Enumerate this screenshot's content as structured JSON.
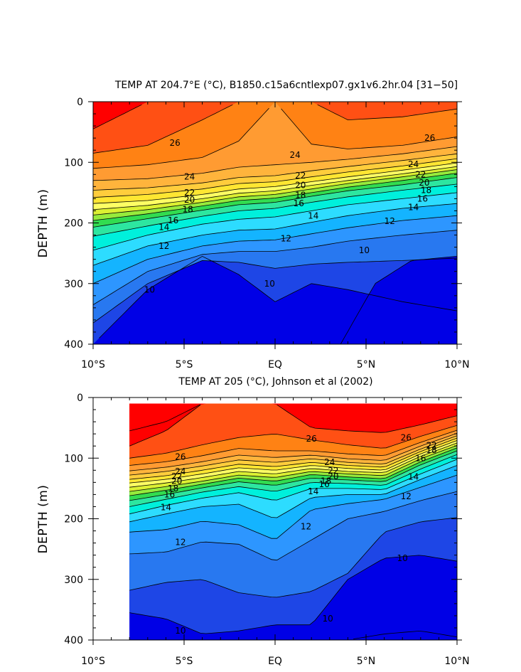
{
  "figure": {
    "background": "#ffffff"
  },
  "colors": {
    "levels": [
      "#0000e6",
      "#1e46e6",
      "#2878f0",
      "#2d96ff",
      "#14b4ff",
      "#2ddcff",
      "#00f0dc",
      "#2de6a0",
      "#32dc50",
      "#96eb3c",
      "#dcf032",
      "#ffff64",
      "#ffe632",
      "#ffcd3c",
      "#ffb43c",
      "#ff9b32",
      "#ff8214",
      "#ff5014",
      "#ff0000"
    ]
  },
  "chart_data": [
    {
      "type": "contour",
      "title": "TEMP AT 204.7°E (°C), B1850.c15a6cntlexp07.gx1v6.2hr.04 [31−50]",
      "ylabel": "DEPTH (m)",
      "xlabel": "",
      "xlim": [
        -10,
        10
      ],
      "ylim": [
        400,
        0
      ],
      "xticks": [
        {
          "value": -10,
          "label": "10°S"
        },
        {
          "value": -5,
          "label": "5°S"
        },
        {
          "value": 0,
          "label": "EQ"
        },
        {
          "value": 5,
          "label": "5°N"
        },
        {
          "value": 10,
          "label": "10°N"
        }
      ],
      "yticks": [
        {
          "value": 0,
          "label": "0"
        },
        {
          "value": 100,
          "label": "100"
        },
        {
          "value": 200,
          "label": "200"
        },
        {
          "value": 300,
          "label": "300"
        },
        {
          "value": 400,
          "label": "400"
        }
      ],
      "contour_interval": 1,
      "x_start": -10,
      "isotherm_depths": {
        "x": [
          -10,
          -7,
          -4,
          -2,
          0,
          2,
          4,
          7,
          10
        ],
        "levels": [
          {
            "t": 10,
            "depth": [
              400,
              310,
              255,
              285,
              330,
              300,
              310,
              330,
              345
            ]
          },
          {
            "t": 11,
            "depth": [
              365,
              300,
              262,
              265,
              275,
              268,
              265,
              262,
              258
            ]
          },
          {
            "t": 12,
            "depth": [
              335,
              280,
              252,
              247,
              247,
              240,
              230,
              220,
              212
            ]
          },
          {
            "t": 13,
            "depth": [
              300,
              260,
              238,
              230,
              228,
              218,
              208,
              196,
              188
            ]
          },
          {
            "t": 14,
            "depth": [
              270,
              238,
              220,
              212,
              210,
              199,
              188,
              176,
              168
            ]
          },
          {
            "t": 15,
            "depth": [
              245,
              220,
              202,
              194,
              190,
              180,
              170,
              160,
              150
            ]
          },
          {
            "t": 16,
            "depth": [
              222,
              205,
              189,
              180,
              176,
              166,
              157,
              146,
              136
            ]
          },
          {
            "t": 17,
            "depth": [
              207,
              193,
              179,
              170,
              166,
              156,
              147,
              137,
              125
            ]
          },
          {
            "t": 18,
            "depth": [
              196,
              185,
              172,
              163,
              159,
              150,
              141,
              130,
              118
            ]
          },
          {
            "t": 19,
            "depth": [
              187,
              178,
              166,
              157,
              153,
              144,
              135,
              124,
              112
            ]
          },
          {
            "t": 20,
            "depth": [
              178,
              171,
              160,
              151,
              147,
              138,
              130,
              119,
              107
            ]
          },
          {
            "t": 21,
            "depth": [
              168,
              163,
              153,
              144,
              140,
              132,
              124,
              113,
              101
            ]
          },
          {
            "t": 22,
            "depth": [
              158,
              153,
              144,
              135,
              132,
              124,
              116,
              106,
              94
            ]
          },
          {
            "t": 23,
            "depth": [
              146,
              142,
              134,
              125,
              122,
              114,
              107,
              97,
              86
            ]
          },
          {
            "t": 24,
            "depth": [
              130,
              127,
              118,
              108,
              104,
              100,
              95,
              86,
              74
            ]
          },
          {
            "t": 25,
            "depth": [
              110,
              104,
              92,
              65,
              0,
              70,
              78,
              72,
              58
            ]
          },
          {
            "t": 26,
            "depth": [
              85,
              72,
              30,
              0,
              0,
              0,
              30,
              25,
              12
            ]
          },
          {
            "t": 27,
            "depth": [
              45,
              0,
              0,
              0,
              0,
              0,
              0,
              0,
              0
            ]
          }
        ]
      },
      "deep_cold_patch": {
        "t": 9,
        "x": [
          3.6,
          5.5,
          7.5,
          10
        ],
        "top_depth": [
          400,
          300,
          262,
          255
        ]
      },
      "contour_labels": [
        {
          "text": "26",
          "x": -5.5,
          "depth": 68
        },
        {
          "text": "24",
          "x": 1.1,
          "depth": 88
        },
        {
          "text": "26",
          "x": 8.5,
          "depth": 60
        },
        {
          "text": "24",
          "x": -4.7,
          "depth": 124
        },
        {
          "text": "24",
          "x": 7.6,
          "depth": 103
        },
        {
          "text": "22",
          "x": -4.7,
          "depth": 150
        },
        {
          "text": "22",
          "x": 1.4,
          "depth": 122
        },
        {
          "text": "22",
          "x": 8.0,
          "depth": 120
        },
        {
          "text": "20",
          "x": -4.7,
          "depth": 162
        },
        {
          "text": "20",
          "x": 1.4,
          "depth": 138
        },
        {
          "text": "20",
          "x": 8.2,
          "depth": 134
        },
        {
          "text": "18",
          "x": -4.8,
          "depth": 178
        },
        {
          "text": "18",
          "x": 1.4,
          "depth": 154
        },
        {
          "text": "18",
          "x": 8.3,
          "depth": 146
        },
        {
          "text": "16",
          "x": -5.6,
          "depth": 196
        },
        {
          "text": "16",
          "x": 1.3,
          "depth": 168
        },
        {
          "text": "16",
          "x": 8.1,
          "depth": 160
        },
        {
          "text": "14",
          "x": -6.1,
          "depth": 207
        },
        {
          "text": "14",
          "x": 2.1,
          "depth": 188
        },
        {
          "text": "14",
          "x": 7.6,
          "depth": 174
        },
        {
          "text": "12",
          "x": -6.1,
          "depth": 238
        },
        {
          "text": "12",
          "x": 0.6,
          "depth": 226
        },
        {
          "text": "12",
          "x": 6.3,
          "depth": 197
        },
        {
          "text": "10",
          "x": -6.9,
          "depth": 310
        },
        {
          "text": "10",
          "x": 4.9,
          "depth": 245
        },
        {
          "text": "10",
          "x": -0.3,
          "depth": 300
        }
      ]
    },
    {
      "type": "contour",
      "title": "TEMP AT 205 (°C), Johnson et al (2002)",
      "ylabel": "DEPTH (m)",
      "xlabel": "",
      "xlim": [
        -10,
        10
      ],
      "ylim": [
        400,
        0
      ],
      "xticks": [
        {
          "value": -10,
          "label": "10°S"
        },
        {
          "value": -5,
          "label": "5°S"
        },
        {
          "value": 0,
          "label": "EQ"
        },
        {
          "value": 5,
          "label": "5°N"
        },
        {
          "value": 10,
          "label": "10°N"
        }
      ],
      "yticks": [
        {
          "value": 0,
          "label": "0"
        },
        {
          "value": 100,
          "label": "100"
        },
        {
          "value": 200,
          "label": "200"
        },
        {
          "value": 300,
          "label": "300"
        },
        {
          "value": 400,
          "label": "400"
        }
      ],
      "contour_interval": 1,
      "x_start": -8,
      "surface_depth": 10,
      "isotherm_depths": {
        "x": [
          -8,
          -6,
          -4,
          -2,
          0,
          2,
          4,
          6,
          8,
          10
        ],
        "levels": [
          {
            "t": 9,
            "depth": [
              400,
              400,
              400,
              400,
              400,
              400,
              400,
              390,
              385,
              395
            ]
          },
          {
            "t": 10,
            "depth": [
              355,
              365,
              390,
              385,
              375,
              375,
              300,
              265,
              260,
              270
            ]
          },
          {
            "t": 11,
            "depth": [
              318,
              305,
              300,
              322,
              330,
              320,
              290,
              222,
              205,
              198
            ]
          },
          {
            "t": 12,
            "depth": [
              258,
              255,
              238,
              242,
              270,
              235,
              200,
              188,
              170,
              155
            ]
          },
          {
            "t": 13,
            "depth": [
              222,
              218,
              204,
              210,
              235,
              185,
              175,
              168,
              148,
              128
            ]
          },
          {
            "t": 14,
            "depth": [
              205,
              192,
              180,
              176,
              200,
              165,
              160,
              160,
              135,
              112
            ]
          },
          {
            "t": 15,
            "depth": [
              192,
              178,
              166,
              157,
              170,
              150,
              150,
              152,
              126,
              102
            ]
          },
          {
            "t": 16,
            "depth": [
              180,
              168,
              156,
              147,
              155,
              140,
              142,
              145,
              118,
              94
            ]
          },
          {
            "t": 17,
            "depth": [
              170,
              160,
              149,
              139,
              145,
              133,
              136,
              139,
              111,
              88
            ]
          },
          {
            "t": 18,
            "depth": [
              162,
              153,
              143,
              133,
              138,
              127,
              131,
              134,
              106,
              83
            ]
          },
          {
            "t": 19,
            "depth": [
              155,
              147,
              138,
              128,
              132,
              122,
              126,
              129,
              101,
              79
            ]
          },
          {
            "t": 20,
            "depth": [
              148,
              141,
              132,
              122,
              126,
              117,
              122,
              124,
              97,
              75
            ]
          },
          {
            "t": 21,
            "depth": [
              141,
              135,
              126,
              116,
              120,
              112,
              117,
              120,
              93,
              71
            ]
          },
          {
            "t": 22,
            "depth": [
              135,
              129,
              120,
              110,
              114,
              107,
              112,
              115,
              89,
              67
            ]
          },
          {
            "t": 23,
            "depth": [
              128,
              122,
              113,
              103,
              107,
              101,
              107,
              110,
              85,
              63
            ]
          },
          {
            "t": 24,
            "depth": [
              121,
              115,
              106,
              95,
              99,
              95,
              101,
              104,
              80,
              59
            ]
          },
          {
            "t": 25,
            "depth": [
              112,
              106,
              96,
              84,
              88,
              88,
              93,
              96,
              74,
              54
            ]
          },
          {
            "t": 26,
            "depth": [
              100,
              92,
              78,
              66,
              60,
              70,
              78,
              84,
              64,
              46
            ]
          },
          {
            "t": 27,
            "depth": [
              80,
              55,
              10,
              10,
              10,
              50,
              55,
              58,
              45,
              30
            ]
          },
          {
            "t": 28,
            "depth": [
              55,
              40,
              10,
              10,
              10,
              10,
              10,
              10,
              10,
              10
            ]
          }
        ]
      },
      "contour_labels": [
        {
          "text": "26",
          "x": -5.2,
          "depth": 98
        },
        {
          "text": "26",
          "x": 2.0,
          "depth": 68
        },
        {
          "text": "26",
          "x": 7.2,
          "depth": 66
        },
        {
          "text": "24",
          "x": -5.2,
          "depth": 122
        },
        {
          "text": "24",
          "x": 3.0,
          "depth": 107
        },
        {
          "text": "22",
          "x": -5.4,
          "depth": 130
        },
        {
          "text": "22",
          "x": 3.2,
          "depth": 121
        },
        {
          "text": "22",
          "x": 8.6,
          "depth": 79
        },
        {
          "text": "20",
          "x": -5.4,
          "depth": 138
        },
        {
          "text": "20",
          "x": 3.2,
          "depth": 130
        },
        {
          "text": "18",
          "x": -5.6,
          "depth": 150
        },
        {
          "text": "18",
          "x": 2.8,
          "depth": 138
        },
        {
          "text": "18",
          "x": 8.6,
          "depth": 87
        },
        {
          "text": "16",
          "x": -5.8,
          "depth": 160
        },
        {
          "text": "16",
          "x": 2.7,
          "depth": 143
        },
        {
          "text": "16",
          "x": 8.0,
          "depth": 100
        },
        {
          "text": "14",
          "x": -6.0,
          "depth": 181
        },
        {
          "text": "14",
          "x": 2.1,
          "depth": 155
        },
        {
          "text": "14",
          "x": 7.6,
          "depth": 131
        },
        {
          "text": "12",
          "x": -5.2,
          "depth": 239
        },
        {
          "text": "12",
          "x": 1.7,
          "depth": 213
        },
        {
          "text": "12",
          "x": 7.2,
          "depth": 163
        },
        {
          "text": "10",
          "x": 7.0,
          "depth": 265
        },
        {
          "text": "10",
          "x": 2.9,
          "depth": 365
        },
        {
          "text": "10",
          "x": -5.2,
          "depth": 385
        }
      ]
    }
  ]
}
